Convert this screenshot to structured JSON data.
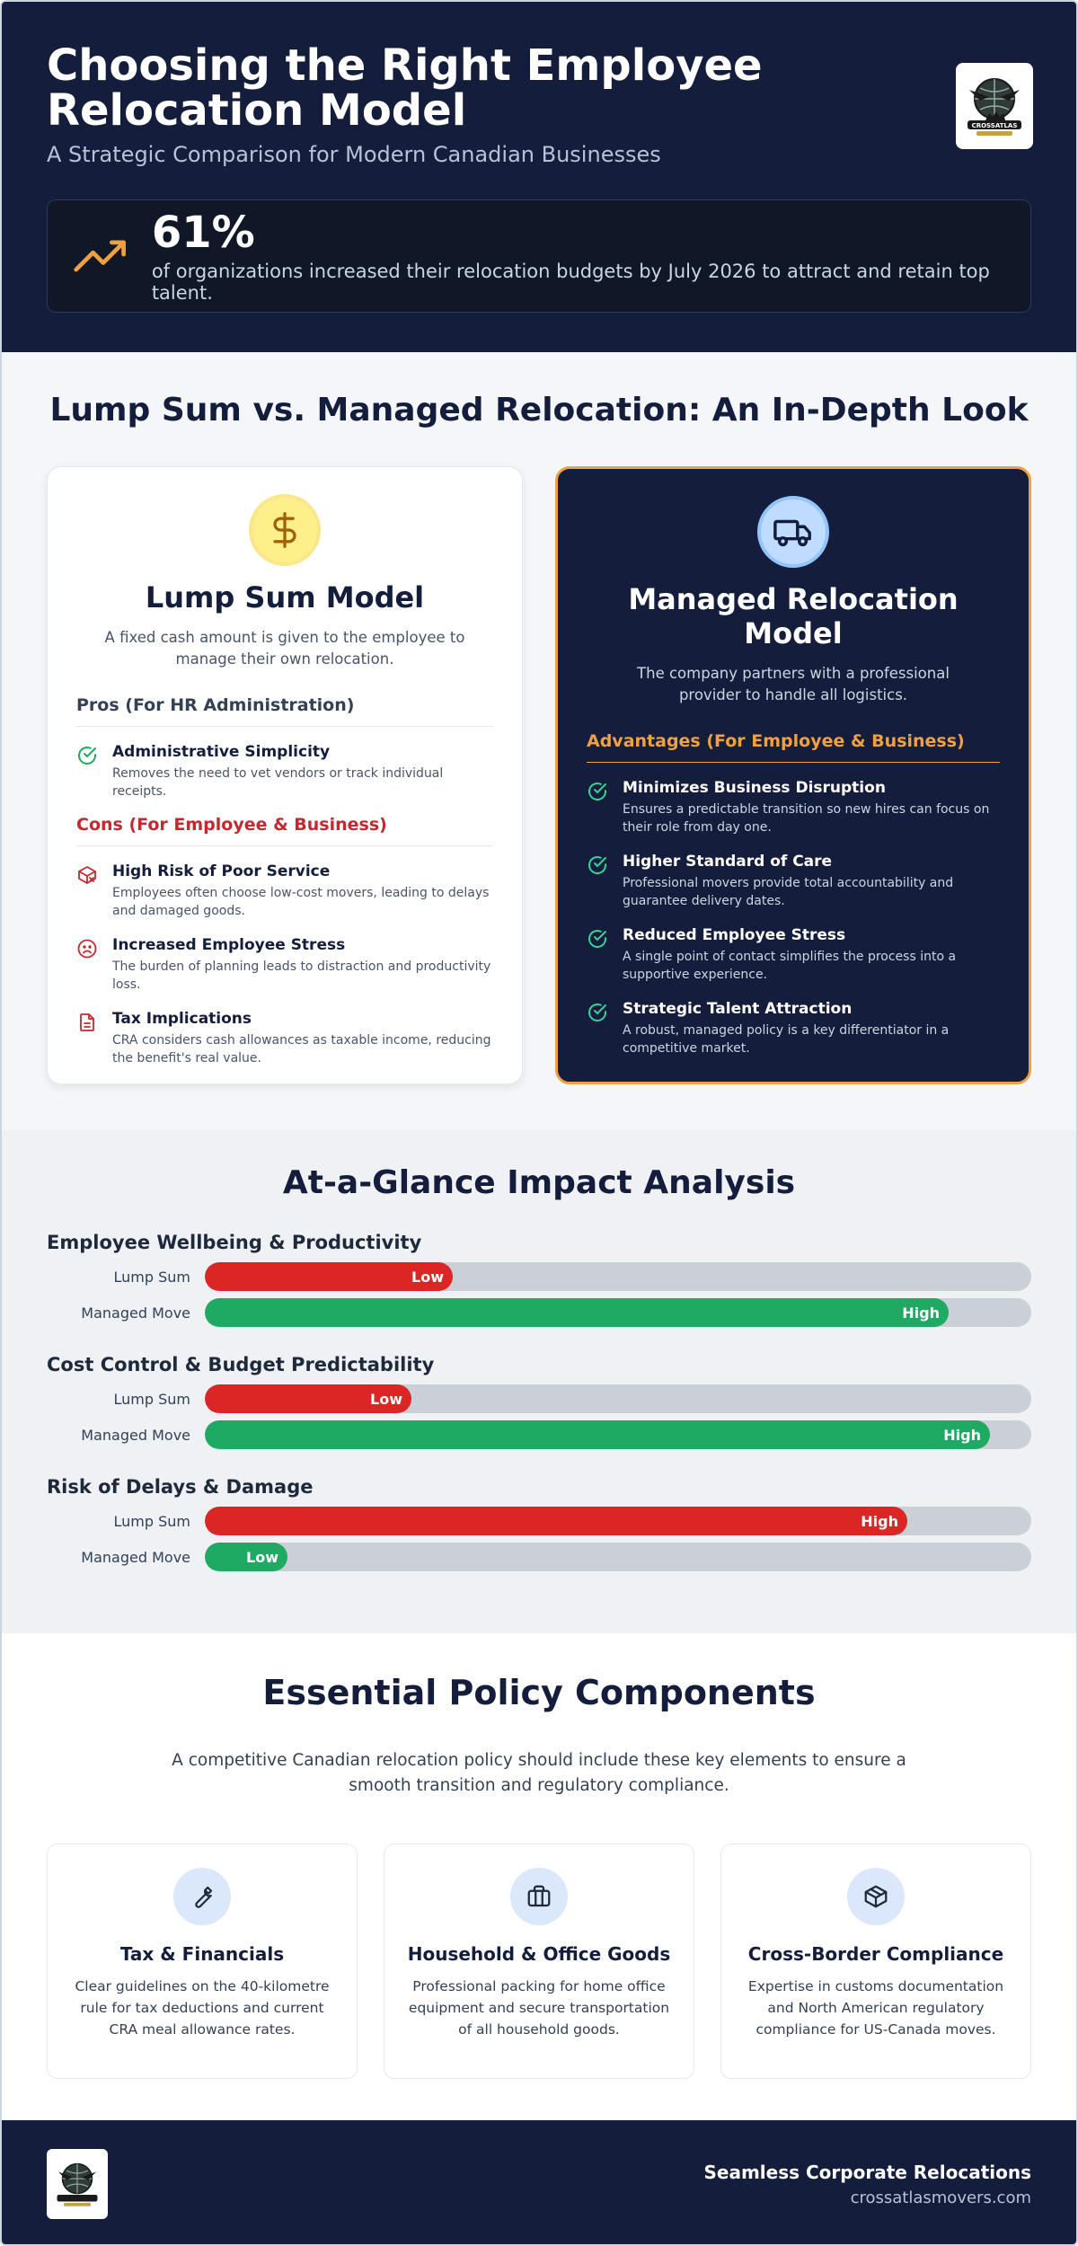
{
  "header": {
    "title": "Choosing the Right Employee Relocation Model",
    "subtitle": "A Strategic Comparison for Modern Canadian Businesses",
    "logo_text": "CROSSATLAS",
    "stat": {
      "value": "61%",
      "text": "of organizations increased their relocation budgets by July 2026 to attract and retain top talent."
    }
  },
  "comparison": {
    "title": "Lump Sum vs. Managed Relocation: An In-Depth Look",
    "lump_sum": {
      "title": "Lump Sum Model",
      "description": "A fixed cash amount is given to the employee to manage their own relocation.",
      "pros_heading": "Pros (For HR Administration)",
      "pros": [
        {
          "title": "Administrative Simplicity",
          "text": "Removes the need to vet vendors or track individual receipts."
        }
      ],
      "cons_heading": "Cons (For Employee & Business)",
      "cons": [
        {
          "title": "High Risk of Poor Service",
          "text": "Employees often choose low-cost movers, leading to delays and damaged goods."
        },
        {
          "title": "Increased Employee Stress",
          "text": "The burden of planning leads to distraction and productivity loss."
        },
        {
          "title": "Tax Implications",
          "text": "CRA considers cash allowances as taxable income, reducing the benefit's real value."
        }
      ]
    },
    "managed": {
      "title": "Managed Relocation Model",
      "description": "The company partners with a professional provider to handle all logistics.",
      "advantages_heading": "Advantages (For Employee & Business)",
      "advantages": [
        {
          "title": "Minimizes Business Disruption",
          "text": "Ensures a predictable transition so new hires can focus on their role from day one."
        },
        {
          "title": "Higher Standard of Care",
          "text": "Professional movers provide total accountability and guarantee delivery dates."
        },
        {
          "title": "Reduced Employee Stress",
          "text": "A single point of contact simplifies the process into a supportive experience."
        },
        {
          "title": "Strategic Talent Attraction",
          "text": "A robust, managed policy is a key differentiator in a competitive market."
        }
      ]
    }
  },
  "impact": {
    "title": "At-a-Glance Impact Analysis",
    "metrics": [
      {
        "title": "Employee Wellbeing & Productivity",
        "rows": [
          {
            "label": "Lump Sum",
            "value_label": "Low",
            "fraction": 0.3,
            "color": "#dc2626"
          },
          {
            "label": "Managed Move",
            "value_label": "High",
            "fraction": 0.9,
            "color": "#1eaa63"
          }
        ]
      },
      {
        "title": "Cost Control & Budget Predictability",
        "rows": [
          {
            "label": "Lump Sum",
            "value_label": "Low",
            "fraction": 0.25,
            "color": "#dc2626"
          },
          {
            "label": "Managed Move",
            "value_label": "High",
            "fraction": 0.95,
            "color": "#1eaa63"
          }
        ]
      },
      {
        "title": "Risk of Delays & Damage",
        "rows": [
          {
            "label": "Lump Sum",
            "value_label": "High",
            "fraction": 0.85,
            "color": "#dc2626"
          },
          {
            "label": "Managed Move",
            "value_label": "Low",
            "fraction": 0.1,
            "color": "#1eaa63"
          }
        ]
      }
    ]
  },
  "policy": {
    "title": "Essential Policy Components",
    "intro": "A competitive Canadian relocation policy should include these key elements to ensure a smooth transition and regulatory compliance.",
    "cards": [
      {
        "icon": "wrench-icon",
        "title": "Tax & Financials",
        "text": "Clear guidelines on the 40-kilometre rule for tax deductions and current CRA meal allowance rates."
      },
      {
        "icon": "briefcase-icon",
        "title": "Household & Office Goods",
        "text": "Professional packing for home office equipment and secure transportation of all household goods."
      },
      {
        "icon": "box-icon",
        "title": "Cross-Border Compliance",
        "text": "Expertise in customs documentation and North American regulatory compliance for US-Canada moves."
      }
    ]
  },
  "footer": {
    "tagline": "Seamless Corporate Relocations",
    "url": "crossatlasmovers.com"
  },
  "colors": {
    "navy": "#141e3c",
    "accent_orange": "#f0a040",
    "red": "#dc2626",
    "green": "#1eaa63"
  }
}
